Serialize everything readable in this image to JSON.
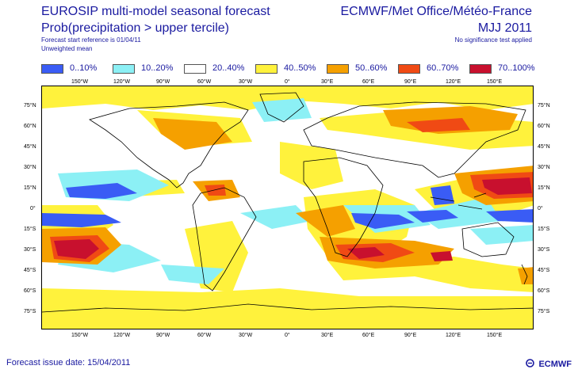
{
  "header": {
    "title_line1": "EUROSIP multi-model seasonal forecast",
    "title_line2": "Prob(precipitation > upper tercile)",
    "start_reference": "Forecast start reference is 01/04/11",
    "mean_type": "Unweighted mean",
    "centres": "ECMWF/Met Office/Météo-France",
    "season": "MJJ 2011",
    "significance": "No significance test applied"
  },
  "legend": [
    {
      "label": "0..10%",
      "color": "#3a5cf5"
    },
    {
      "label": "10..20%",
      "color": "#8cf0f5"
    },
    {
      "label": "20..40%",
      "color": "#ffffff"
    },
    {
      "label": "40..50%",
      "color": "#fff23c"
    },
    {
      "label": "50..60%",
      "color": "#f5a000"
    },
    {
      "label": "60..70%",
      "color": "#f04a14"
    },
    {
      "label": "70..100%",
      "color": "#c8102e"
    }
  ],
  "axes": {
    "lon_labels": [
      "150°W",
      "120°W",
      "90°W",
      "60°W",
      "30°W",
      "0°",
      "30°E",
      "60°E",
      "90°E",
      "120°E",
      "150°E"
    ],
    "lat_labels": [
      "75°N",
      "60°N",
      "45°N",
      "30°N",
      "15°N",
      "0°",
      "15°S",
      "30°S",
      "45°S",
      "60°S",
      "75°S"
    ]
  },
  "footer": {
    "issue_date": "Forecast issue date: 15/04/2011",
    "logo_text": "ECMWF"
  }
}
